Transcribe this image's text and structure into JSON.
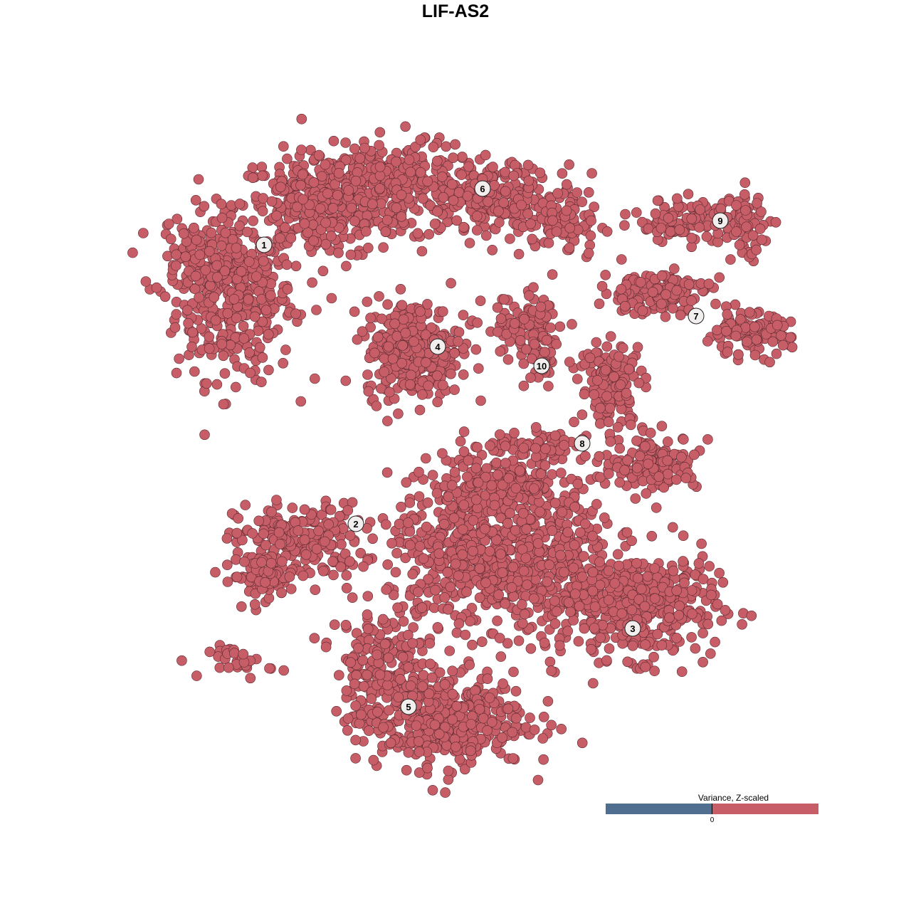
{
  "chart_data": {
    "type": "scatter",
    "title": "LIF-AS2",
    "xlabel": "",
    "ylabel": "",
    "grid": false,
    "axes_visible": false,
    "point_color": "#c65d67",
    "point_stroke": "#5a2a2f",
    "clusters": [
      {
        "label": "1",
        "label_pos": [
          -26.9,
          29.6
        ],
        "components": [
          [
            -31,
            22,
            5.5,
            7.5,
            350
          ],
          [
            -19,
            35,
            8,
            5,
            350
          ],
          [
            -37,
            28,
            3.5,
            4,
            80
          ]
        ]
      },
      {
        "label": "2",
        "label_pos": [
          -14,
          -9.6
        ],
        "components": [
          [
            -22,
            -12,
            6,
            3.5,
            200
          ],
          [
            -27,
            -17,
            3,
            2,
            80
          ],
          [
            -30,
            -29,
            3,
            1.5,
            30
          ]
        ]
      },
      {
        "label": "3",
        "label_pos": [
          24.9,
          -24.3
        ],
        "components": [
          [
            26,
            -21,
            7,
            5,
            400
          ],
          [
            15,
            -16,
            4,
            8,
            200
          ]
        ]
      },
      {
        "label": "4",
        "label_pos": [
          -2.5,
          15.3
        ],
        "components": [
          [
            -6,
            15,
            4.5,
            4.5,
            350
          ]
        ]
      },
      {
        "label": "5",
        "label_pos": [
          -6.6,
          -35.3
        ],
        "components": [
          [
            -2,
            -37,
            8,
            4.5,
            450
          ],
          [
            -11,
            -29,
            4,
            5,
            150
          ],
          [
            4,
            -14,
            9,
            7,
            600
          ],
          [
            6,
            -4,
            6,
            3,
            150
          ]
        ]
      },
      {
        "label": "6",
        "label_pos": [
          3.8,
          37.5
        ],
        "components": [
          [
            -8,
            38,
            7,
            4,
            300
          ],
          [
            8,
            36,
            6,
            3.5,
            200
          ],
          [
            16,
            32,
            3,
            2.5,
            60
          ]
        ]
      },
      {
        "label": "7",
        "label_pos": [
          33.8,
          19.6
        ],
        "components": [
          [
            28,
            23,
            5,
            2,
            150
          ],
          [
            41,
            17,
            4,
            2,
            120
          ]
        ]
      },
      {
        "label": "8",
        "label_pos": [
          17.8,
          1.7
        ],
        "components": [
          [
            22,
            10,
            3,
            4,
            150
          ],
          [
            28,
            -1,
            4,
            2.5,
            150
          ],
          [
            12,
            1,
            5,
            1.5,
            80
          ]
        ]
      },
      {
        "label": "9",
        "label_pos": [
          37.2,
          33
        ],
        "components": [
          [
            33,
            33,
            5.5,
            2,
            120
          ],
          [
            41,
            32,
            1.5,
            3,
            50
          ]
        ]
      },
      {
        "label": "10",
        "label_pos": [
          12.1,
          12.6
        ],
        "components": [
          [
            10,
            18,
            4,
            3,
            100
          ],
          [
            12,
            13,
            1.5,
            2.5,
            40
          ]
        ]
      }
    ],
    "legend": {
      "title": "Variance, Z-scaled",
      "tick": "0",
      "low_color": "#506f90",
      "high_color": "#c65d67",
      "placement": "bottom-right"
    }
  }
}
